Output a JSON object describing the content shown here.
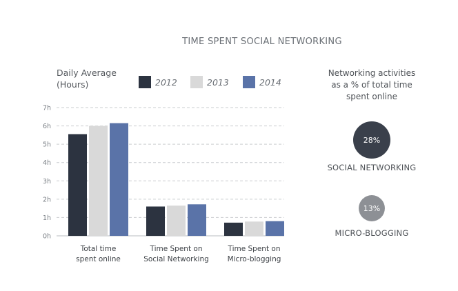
{
  "chart_data": {
    "type": "bar",
    "title": "TIME SPENT SOCIAL NETWORKING",
    "ylabel": [
      "Daily Average",
      "(Hours)"
    ],
    "ylim": [
      0,
      7
    ],
    "yticks": [
      "0h",
      "1h",
      "2h",
      "3h",
      "4h",
      "5h",
      "6h",
      "7h"
    ],
    "grid": true,
    "legend_position": "top",
    "categories": [
      [
        "Total time",
        "spent online"
      ],
      [
        "Time Spent on",
        "Social Networking"
      ],
      [
        "Time Spent on",
        "Micro-blogging"
      ]
    ],
    "series": [
      {
        "name": "2012",
        "color": "#2c3340",
        "values": [
          5.55,
          1.6,
          0.72
        ]
      },
      {
        "name": "2013",
        "color": "#d9d9d9",
        "values": [
          6.0,
          1.65,
          0.78
        ]
      },
      {
        "name": "2014",
        "color": "#5a73a8",
        "values": [
          6.15,
          1.72,
          0.8
        ]
      }
    ]
  },
  "side_panel": {
    "heading": [
      "Networking activities",
      "as a % of total time",
      "spent online"
    ],
    "items": [
      {
        "value_text": "28%",
        "value": 28,
        "label": "SOCIAL NETWORKING",
        "color": "#3a404b"
      },
      {
        "value_text": "13%",
        "value": 13,
        "label": "MICRO-BLOGGING",
        "color": "#8d9095"
      }
    ]
  }
}
